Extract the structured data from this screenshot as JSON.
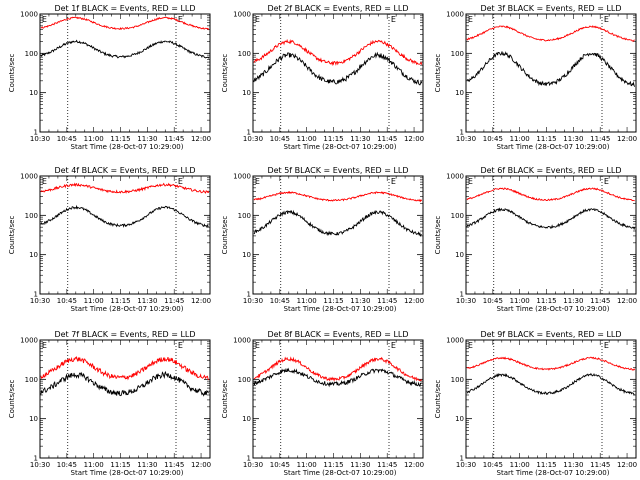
{
  "chart_data": {
    "type": "line",
    "layout": "3x3 small multiples",
    "y_scale": "log",
    "ylim": [
      1,
      1000
    ],
    "y_ticks": [
      "1",
      "10",
      "100",
      "1000"
    ],
    "ylabel": "Counts/sec",
    "xlabel": "Start Time (28-Oct-07 10:29:00)",
    "x_ticks": [
      "10:30",
      "10:45",
      "11:00",
      "11:15",
      "11:30",
      "11:45",
      "12:00"
    ],
    "x_tick_minutes": [
      30,
      45,
      60,
      75,
      90,
      105,
      120
    ],
    "xlim_minutes": [
      30,
      125
    ],
    "vlines_minutes": [
      45.5,
      106
    ],
    "markers": [
      {
        "label": "E",
        "minute": 30.5
      },
      {
        "label": "E",
        "minute": 106.5
      }
    ],
    "colors": {
      "events": "#000000",
      "lld": "#ff0000"
    },
    "panels": [
      {
        "title": "Det 1f BLACK = Events, RED = LLD",
        "series": [
          {
            "name": "Events",
            "color": "#000000",
            "base": 75,
            "peak": 200,
            "noise": 0.03
          },
          {
            "name": "LLD",
            "color": "#ff0000",
            "base": 400,
            "peak": 800,
            "noise": 0.02
          }
        ]
      },
      {
        "title": "Det 2f BLACK = Events, RED = LLD",
        "series": [
          {
            "name": "Events",
            "color": "#000000",
            "base": 16,
            "peak": 90,
            "noise": 0.06
          },
          {
            "name": "LLD",
            "color": "#ff0000",
            "base": 50,
            "peak": 200,
            "noise": 0.04
          }
        ]
      },
      {
        "title": "Det 3f BLACK = Events, RED = LLD",
        "series": [
          {
            "name": "Events",
            "color": "#000000",
            "base": 14,
            "peak": 100,
            "noise": 0.05
          },
          {
            "name": "LLD",
            "color": "#ff0000",
            "base": 200,
            "peak": 480,
            "noise": 0.02
          }
        ]
      },
      {
        "title": "Det 4f BLACK = Events, RED = LLD",
        "series": [
          {
            "name": "Events",
            "color": "#000000",
            "base": 50,
            "peak": 160,
            "noise": 0.03
          },
          {
            "name": "LLD",
            "color": "#ff0000",
            "base": 380,
            "peak": 600,
            "noise": 0.03
          }
        ]
      },
      {
        "title": "Det 5f BLACK = Events, RED = LLD",
        "series": [
          {
            "name": "Events",
            "color": "#000000",
            "base": 30,
            "peak": 120,
            "noise": 0.04
          },
          {
            "name": "LLD",
            "color": "#ff0000",
            "base": 230,
            "peak": 380,
            "noise": 0.02
          }
        ]
      },
      {
        "title": "Det 6f BLACK = Events, RED = LLD",
        "series": [
          {
            "name": "Events",
            "color": "#000000",
            "base": 45,
            "peak": 140,
            "noise": 0.03
          },
          {
            "name": "LLD",
            "color": "#ff0000",
            "base": 230,
            "peak": 480,
            "noise": 0.02
          }
        ]
      },
      {
        "title": "Det 7f BLACK = Events, RED = LLD",
        "series": [
          {
            "name": "Events",
            "color": "#000000",
            "base": 40,
            "peak": 130,
            "noise": 0.07
          },
          {
            "name": "LLD",
            "color": "#ff0000",
            "base": 100,
            "peak": 330,
            "noise": 0.06
          }
        ]
      },
      {
        "title": "Det 8f BLACK = Events, RED = LLD",
        "series": [
          {
            "name": "Events",
            "color": "#000000",
            "base": 70,
            "peak": 170,
            "noise": 0.05
          },
          {
            "name": "LLD",
            "color": "#ff0000",
            "base": 90,
            "peak": 330,
            "noise": 0.04
          }
        ]
      },
      {
        "title": "Det 9f BLACK = Events, RED = LLD",
        "series": [
          {
            "name": "Events",
            "color": "#000000",
            "base": 40,
            "peak": 130,
            "noise": 0.03
          },
          {
            "name": "LLD",
            "color": "#ff0000",
            "base": 170,
            "peak": 350,
            "noise": 0.02
          }
        ]
      }
    ]
  }
}
